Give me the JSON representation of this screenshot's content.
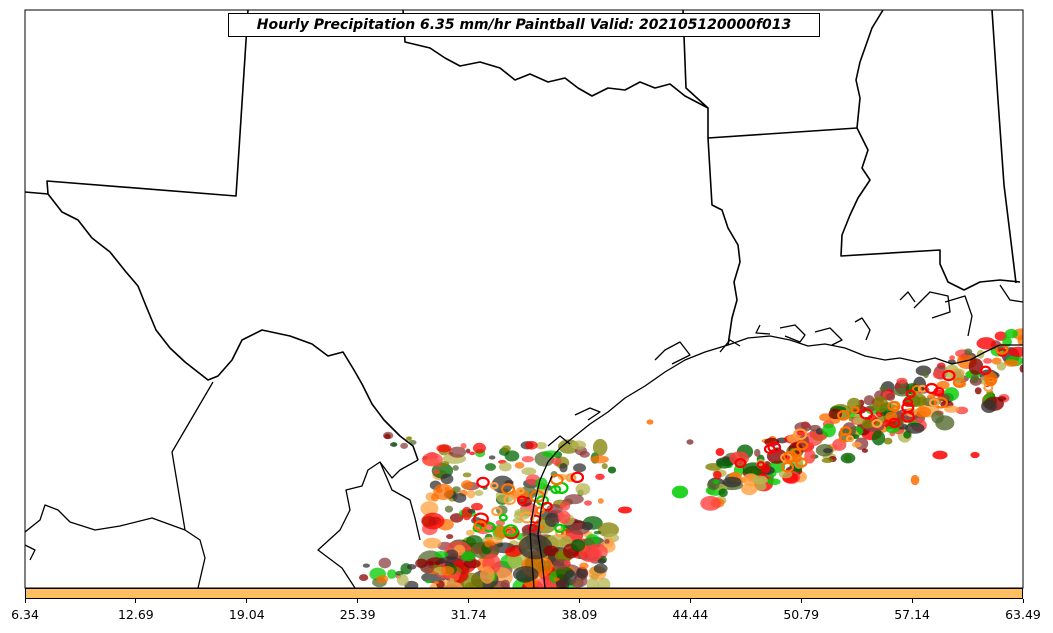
{
  "title": "Hourly Precipitation 6.35 mm/hr Paintball Valid: 202105120000f013",
  "colorbar": {
    "color": "#ffbf60",
    "ticks": [
      "6.34",
      "12.69",
      "19.04",
      "25.39",
      "31.74",
      "38.09",
      "44.44",
      "50.79",
      "57.14",
      "63.49"
    ]
  },
  "member_colors": [
    "#ff0000",
    "#ff7000",
    "#ffa040",
    "#00cc00",
    "#006600",
    "#8b0000",
    "#556b2f",
    "#808000",
    "#b5b550",
    "#8b4040",
    "#333333",
    "#ff4040"
  ]
}
